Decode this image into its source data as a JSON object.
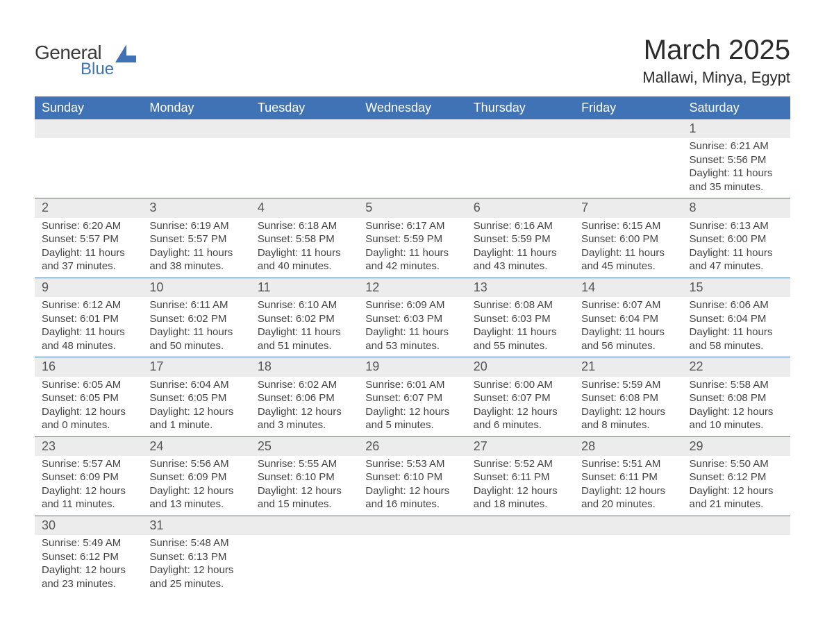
{
  "logo": {
    "line1": "General",
    "line2": "Blue",
    "icon_color": "#3f73b5"
  },
  "title": "March 2025",
  "location": "Mallawi, Minya, Egypt",
  "colors": {
    "header_bg": "#3f73b5",
    "header_text": "#ffffff",
    "daynum_bg": "#ececec",
    "border": "#3f73b5",
    "body_text": "#444444",
    "title_text": "#2b2b2b"
  },
  "day_headers": [
    "Sunday",
    "Monday",
    "Tuesday",
    "Wednesday",
    "Thursday",
    "Friday",
    "Saturday"
  ],
  "weeks": [
    [
      null,
      null,
      null,
      null,
      null,
      null,
      {
        "n": "1",
        "sr": "Sunrise: 6:21 AM",
        "ss": "Sunset: 5:56 PM",
        "d1": "Daylight: 11 hours",
        "d2": "and 35 minutes."
      }
    ],
    [
      {
        "n": "2",
        "sr": "Sunrise: 6:20 AM",
        "ss": "Sunset: 5:57 PM",
        "d1": "Daylight: 11 hours",
        "d2": "and 37 minutes."
      },
      {
        "n": "3",
        "sr": "Sunrise: 6:19 AM",
        "ss": "Sunset: 5:57 PM",
        "d1": "Daylight: 11 hours",
        "d2": "and 38 minutes."
      },
      {
        "n": "4",
        "sr": "Sunrise: 6:18 AM",
        "ss": "Sunset: 5:58 PM",
        "d1": "Daylight: 11 hours",
        "d2": "and 40 minutes."
      },
      {
        "n": "5",
        "sr": "Sunrise: 6:17 AM",
        "ss": "Sunset: 5:59 PM",
        "d1": "Daylight: 11 hours",
        "d2": "and 42 minutes."
      },
      {
        "n": "6",
        "sr": "Sunrise: 6:16 AM",
        "ss": "Sunset: 5:59 PM",
        "d1": "Daylight: 11 hours",
        "d2": "and 43 minutes."
      },
      {
        "n": "7",
        "sr": "Sunrise: 6:15 AM",
        "ss": "Sunset: 6:00 PM",
        "d1": "Daylight: 11 hours",
        "d2": "and 45 minutes."
      },
      {
        "n": "8",
        "sr": "Sunrise: 6:13 AM",
        "ss": "Sunset: 6:00 PM",
        "d1": "Daylight: 11 hours",
        "d2": "and 47 minutes."
      }
    ],
    [
      {
        "n": "9",
        "sr": "Sunrise: 6:12 AM",
        "ss": "Sunset: 6:01 PM",
        "d1": "Daylight: 11 hours",
        "d2": "and 48 minutes."
      },
      {
        "n": "10",
        "sr": "Sunrise: 6:11 AM",
        "ss": "Sunset: 6:02 PM",
        "d1": "Daylight: 11 hours",
        "d2": "and 50 minutes."
      },
      {
        "n": "11",
        "sr": "Sunrise: 6:10 AM",
        "ss": "Sunset: 6:02 PM",
        "d1": "Daylight: 11 hours",
        "d2": "and 51 minutes."
      },
      {
        "n": "12",
        "sr": "Sunrise: 6:09 AM",
        "ss": "Sunset: 6:03 PM",
        "d1": "Daylight: 11 hours",
        "d2": "and 53 minutes."
      },
      {
        "n": "13",
        "sr": "Sunrise: 6:08 AM",
        "ss": "Sunset: 6:03 PM",
        "d1": "Daylight: 11 hours",
        "d2": "and 55 minutes."
      },
      {
        "n": "14",
        "sr": "Sunrise: 6:07 AM",
        "ss": "Sunset: 6:04 PM",
        "d1": "Daylight: 11 hours",
        "d2": "and 56 minutes."
      },
      {
        "n": "15",
        "sr": "Sunrise: 6:06 AM",
        "ss": "Sunset: 6:04 PM",
        "d1": "Daylight: 11 hours",
        "d2": "and 58 minutes."
      }
    ],
    [
      {
        "n": "16",
        "sr": "Sunrise: 6:05 AM",
        "ss": "Sunset: 6:05 PM",
        "d1": "Daylight: 12 hours",
        "d2": "and 0 minutes."
      },
      {
        "n": "17",
        "sr": "Sunrise: 6:04 AM",
        "ss": "Sunset: 6:05 PM",
        "d1": "Daylight: 12 hours",
        "d2": "and 1 minute."
      },
      {
        "n": "18",
        "sr": "Sunrise: 6:02 AM",
        "ss": "Sunset: 6:06 PM",
        "d1": "Daylight: 12 hours",
        "d2": "and 3 minutes."
      },
      {
        "n": "19",
        "sr": "Sunrise: 6:01 AM",
        "ss": "Sunset: 6:07 PM",
        "d1": "Daylight: 12 hours",
        "d2": "and 5 minutes."
      },
      {
        "n": "20",
        "sr": "Sunrise: 6:00 AM",
        "ss": "Sunset: 6:07 PM",
        "d1": "Daylight: 12 hours",
        "d2": "and 6 minutes."
      },
      {
        "n": "21",
        "sr": "Sunrise: 5:59 AM",
        "ss": "Sunset: 6:08 PM",
        "d1": "Daylight: 12 hours",
        "d2": "and 8 minutes."
      },
      {
        "n": "22",
        "sr": "Sunrise: 5:58 AM",
        "ss": "Sunset: 6:08 PM",
        "d1": "Daylight: 12 hours",
        "d2": "and 10 minutes."
      }
    ],
    [
      {
        "n": "23",
        "sr": "Sunrise: 5:57 AM",
        "ss": "Sunset: 6:09 PM",
        "d1": "Daylight: 12 hours",
        "d2": "and 11 minutes."
      },
      {
        "n": "24",
        "sr": "Sunrise: 5:56 AM",
        "ss": "Sunset: 6:09 PM",
        "d1": "Daylight: 12 hours",
        "d2": "and 13 minutes."
      },
      {
        "n": "25",
        "sr": "Sunrise: 5:55 AM",
        "ss": "Sunset: 6:10 PM",
        "d1": "Daylight: 12 hours",
        "d2": "and 15 minutes."
      },
      {
        "n": "26",
        "sr": "Sunrise: 5:53 AM",
        "ss": "Sunset: 6:10 PM",
        "d1": "Daylight: 12 hours",
        "d2": "and 16 minutes."
      },
      {
        "n": "27",
        "sr": "Sunrise: 5:52 AM",
        "ss": "Sunset: 6:11 PM",
        "d1": "Daylight: 12 hours",
        "d2": "and 18 minutes."
      },
      {
        "n": "28",
        "sr": "Sunrise: 5:51 AM",
        "ss": "Sunset: 6:11 PM",
        "d1": "Daylight: 12 hours",
        "d2": "and 20 minutes."
      },
      {
        "n": "29",
        "sr": "Sunrise: 5:50 AM",
        "ss": "Sunset: 6:12 PM",
        "d1": "Daylight: 12 hours",
        "d2": "and 21 minutes."
      }
    ],
    [
      {
        "n": "30",
        "sr": "Sunrise: 5:49 AM",
        "ss": "Sunset: 6:12 PM",
        "d1": "Daylight: 12 hours",
        "d2": "and 23 minutes."
      },
      {
        "n": "31",
        "sr": "Sunrise: 5:48 AM",
        "ss": "Sunset: 6:13 PM",
        "d1": "Daylight: 12 hours",
        "d2": "and 25 minutes."
      },
      null,
      null,
      null,
      null,
      null
    ]
  ]
}
